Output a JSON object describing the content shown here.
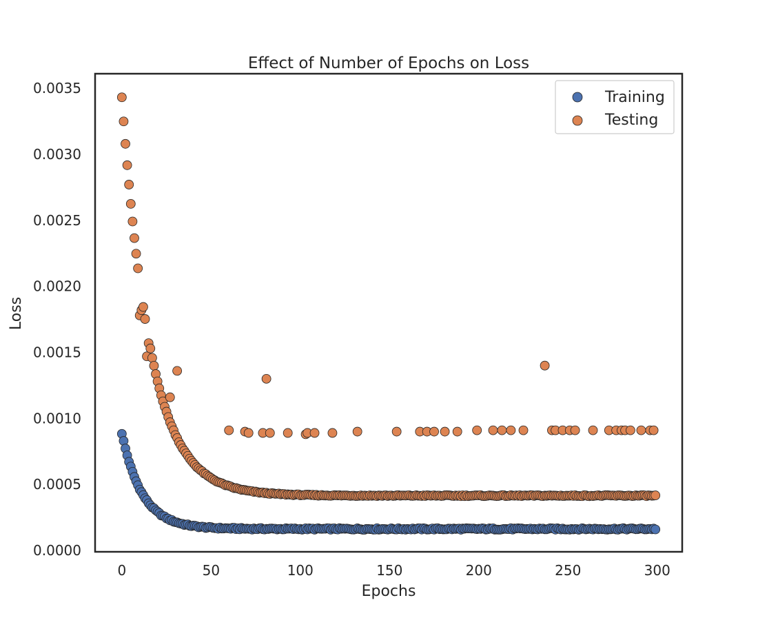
{
  "chart_data": {
    "type": "scatter",
    "title": "Effect of Number of Epochs on Loss",
    "xlabel": "Epochs",
    "ylabel": "Loss",
    "xlim": [
      -15,
      314
    ],
    "ylim": [
      -1e-05,
      0.00361
    ],
    "xticks": [
      0,
      50,
      100,
      150,
      200,
      250,
      300
    ],
    "xtick_labels": [
      "0",
      "50",
      "100",
      "150",
      "200",
      "250",
      "300"
    ],
    "yticks": [
      0.0,
      0.0005,
      0.001,
      0.0015,
      0.002,
      0.0025,
      0.003,
      0.0035
    ],
    "ytick_labels": [
      "0.0000",
      "0.0005",
      "0.0010",
      "0.0015",
      "0.0020",
      "0.0025",
      "0.0030",
      "0.0035"
    ],
    "grid": false,
    "legend_position": "top-right",
    "series": [
      {
        "name": "Training",
        "color": "#4c72b0",
        "model": {
          "a": 0.000724,
          "tau": 11.5,
          "c": 0.000163,
          "x_start": 0,
          "x_end": 299
        },
        "note_points_beyond_model": []
      },
      {
        "name": "Testing",
        "color": "#dd8452",
        "model": {
          "a": 0.00302,
          "tau": 16,
          "c": 0.000415,
          "x_start": 0,
          "x_end": 299
        },
        "outliers": [
          [
            10,
            0.00178
          ],
          [
            11,
            0.00182
          ],
          [
            14,
            0.00147
          ],
          [
            15,
            0.00157
          ],
          [
            27,
            0.00116
          ],
          [
            31,
            0.00136
          ],
          [
            60,
            0.00091
          ],
          [
            69,
            0.0009
          ],
          [
            71,
            0.00089
          ],
          [
            79,
            0.00089
          ],
          [
            81,
            0.0013
          ],
          [
            83,
            0.00089
          ],
          [
            93,
            0.00089
          ],
          [
            103,
            0.00088
          ],
          [
            104,
            0.00089
          ],
          [
            108,
            0.00089
          ],
          [
            118,
            0.00089
          ],
          [
            132,
            0.0009
          ],
          [
            154,
            0.0009
          ],
          [
            167,
            0.0009
          ],
          [
            171,
            0.0009
          ],
          [
            175,
            0.0009
          ],
          [
            181,
            0.0009
          ],
          [
            188,
            0.0009
          ],
          [
            199,
            0.00091
          ],
          [
            208,
            0.00091
          ],
          [
            213,
            0.00091
          ],
          [
            218,
            0.00091
          ],
          [
            225,
            0.00091
          ],
          [
            237,
            0.0014
          ],
          [
            241,
            0.00091
          ],
          [
            243,
            0.00091
          ],
          [
            247,
            0.00091
          ],
          [
            251,
            0.00091
          ],
          [
            254,
            0.00091
          ],
          [
            264,
            0.00091
          ],
          [
            273,
            0.00091
          ],
          [
            277,
            0.00091
          ],
          [
            280,
            0.00091
          ],
          [
            282,
            0.00091
          ],
          [
            285,
            0.00091
          ],
          [
            291,
            0.00091
          ],
          [
            296,
            0.00091
          ],
          [
            298,
            0.00091
          ]
        ]
      }
    ]
  }
}
